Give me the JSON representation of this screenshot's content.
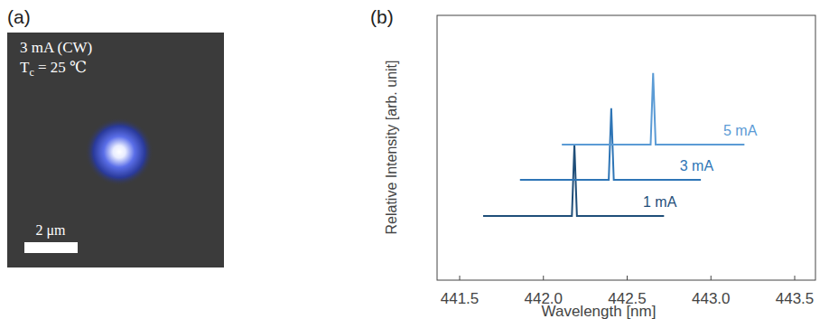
{
  "panel_a": {
    "label": "(a)",
    "lines": [
      "3 mA (CW)",
      {
        "main": "T",
        "sub": "c",
        "rest": " = 25 ℃"
      }
    ],
    "scale_bar": "2 μm"
  },
  "chart_data": {
    "type": "line",
    "label": "(b)",
    "x_label": "Wavelength [nm]",
    "y_label": "Relative Intensity [arb. unit]",
    "xlim": [
      441.5,
      443.5
    ],
    "xticks": [
      441.5,
      {
        "value": 442.0,
        "label": "442.0"
      },
      442.5,
      {
        "value": 443.0,
        "label": "443.0"
      },
      443.5
    ],
    "ylim": [
      0,
      10
    ],
    "tick_labels": "x",
    "grid": false,
    "series": [
      {
        "name": "1 mA",
        "color": "#1f4e79",
        "x": [
          441.64,
          442.17,
          442.185,
          442.2,
          442.72
        ],
        "values": [
          2.42,
          2.42,
          5.12,
          2.42,
          2.42
        ]
      },
      {
        "name": "3 mA",
        "color": "#2e75b6",
        "x": [
          441.86,
          442.39,
          442.405,
          442.42,
          442.94
        ],
        "values": [
          3.79,
          3.79,
          6.49,
          3.79,
          3.79
        ]
      },
      {
        "name": "5 mA",
        "color": "#5b9bd5",
        "x": [
          442.11,
          442.64,
          442.655,
          442.67,
          443.2
        ],
        "values": [
          5.12,
          5.12,
          7.82,
          5.12,
          5.12
        ]
      }
    ]
  }
}
